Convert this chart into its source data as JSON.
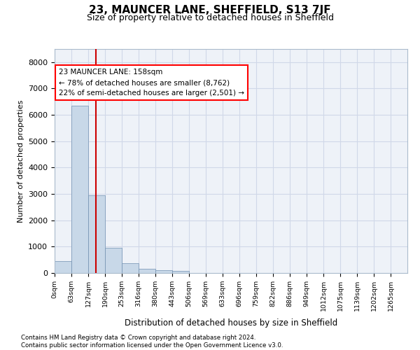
{
  "title": "23, MAUNCER LANE, SHEFFIELD, S13 7JF",
  "subtitle": "Size of property relative to detached houses in Sheffield",
  "xlabel": "Distribution of detached houses by size in Sheffield",
  "ylabel": "Number of detached properties",
  "bar_labels": [
    "0sqm",
    "63sqm",
    "127sqm",
    "190sqm",
    "253sqm",
    "316sqm",
    "380sqm",
    "443sqm",
    "506sqm",
    "569sqm",
    "633sqm",
    "696sqm",
    "759sqm",
    "822sqm",
    "886sqm",
    "949sqm",
    "1012sqm",
    "1075sqm",
    "1139sqm",
    "1202sqm",
    "1265sqm"
  ],
  "bar_heights": [
    450,
    6350,
    2950,
    950,
    380,
    150,
    100,
    75,
    0,
    0,
    0,
    0,
    0,
    0,
    0,
    0,
    0,
    0,
    0,
    0,
    0
  ],
  "bar_color": "#c8d8e8",
  "bar_edge_color": "#7090b0",
  "property_line_x": 2.47,
  "annotation_text": "23 MAUNCER LANE: 158sqm\n← 78% of detached houses are smaller (8,762)\n22% of semi-detached houses are larger (2,501) →",
  "annotation_box_color": "white",
  "annotation_box_edge": "red",
  "red_line_color": "#cc0000",
  "ylim": [
    0,
    8500
  ],
  "yticks": [
    0,
    1000,
    2000,
    3000,
    4000,
    5000,
    6000,
    7000,
    8000
  ],
  "grid_color": "#d0d8e8",
  "background_color": "#eef2f8",
  "footer_line1": "Contains HM Land Registry data © Crown copyright and database right 2024.",
  "footer_line2": "Contains public sector information licensed under the Open Government Licence v3.0."
}
